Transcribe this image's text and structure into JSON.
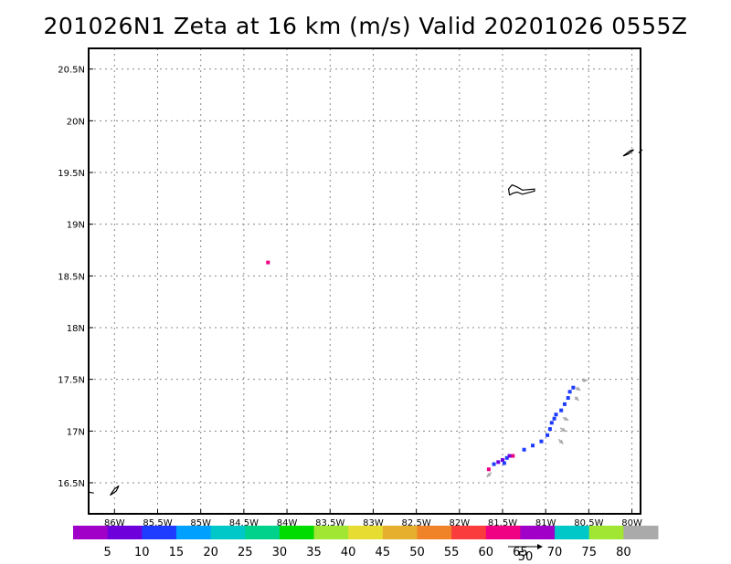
{
  "title": "201026N1 Zeta at 16 km (m/s) Valid 20201026 0555Z",
  "axes": {
    "lon_min": -86.3,
    "lon_max": -79.9,
    "lat_min": 16.2,
    "lat_max": 20.7,
    "x_ticks": [
      {
        "value": -86,
        "label": "86W"
      },
      {
        "value": -85.5,
        "label": "85.5W"
      },
      {
        "value": -85,
        "label": "85W"
      },
      {
        "value": -84.5,
        "label": "84.5W"
      },
      {
        "value": -84,
        "label": "84W"
      },
      {
        "value": -83.5,
        "label": "83.5W"
      },
      {
        "value": -83,
        "label": "83W"
      },
      {
        "value": -82.5,
        "label": "82.5W"
      },
      {
        "value": -82,
        "label": "82W"
      },
      {
        "value": -81.5,
        "label": "81.5W"
      },
      {
        "value": -81,
        "label": "81W"
      },
      {
        "value": -80.5,
        "label": "80.5W"
      },
      {
        "value": -80,
        "label": "80W"
      }
    ],
    "y_ticks": [
      {
        "value": 16.5,
        "label": "16.5N"
      },
      {
        "value": 17,
        "label": "17N"
      },
      {
        "value": 17.5,
        "label": "17.5N"
      },
      {
        "value": 18,
        "label": "18N"
      },
      {
        "value": 18.5,
        "label": "18.5N"
      },
      {
        "value": 19,
        "label": "19N"
      },
      {
        "value": 19.5,
        "label": "19.5N"
      },
      {
        "value": 20,
        "label": "20N"
      },
      {
        "value": 20.5,
        "label": "20.5N"
      }
    ],
    "grid": "dotted"
  },
  "colorbar": {
    "colors": [
      "#a000c8",
      "#6e00dc",
      "#1e3cff",
      "#00a0ff",
      "#00c8c8",
      "#00d28c",
      "#00dc00",
      "#a0e632",
      "#e6dc32",
      "#e6af2d",
      "#f08228",
      "#fa3c3c",
      "#f00082",
      "#a000c8",
      "#00c8c8",
      "#a0e632",
      "#aaaaaa"
    ],
    "labels": [
      "5",
      "10",
      "15",
      "20",
      "25",
      "30",
      "35",
      "40",
      "45",
      "50",
      "55",
      "60",
      "65",
      "70",
      "75",
      "80"
    ]
  },
  "vector_key": {
    "label": "50"
  },
  "reflectivity": [
    {
      "lon": -84.22,
      "lat": 18.63,
      "value": 62
    },
    {
      "lon": -81.66,
      "lat": 16.63,
      "value": 62
    },
    {
      "lon": -81.6,
      "lat": 16.68,
      "value": 13
    },
    {
      "lon": -81.55,
      "lat": 16.7,
      "value": 8
    },
    {
      "lon": -81.5,
      "lat": 16.72,
      "value": 8
    },
    {
      "lon": -81.45,
      "lat": 16.74,
      "value": 13
    },
    {
      "lon": -81.42,
      "lat": 16.76,
      "value": 8
    },
    {
      "lon": -81.48,
      "lat": 16.69,
      "value": 13
    },
    {
      "lon": -81.38,
      "lat": 16.76,
      "value": 62
    },
    {
      "lon": -81.25,
      "lat": 16.82,
      "value": 13
    },
    {
      "lon": -81.15,
      "lat": 16.86,
      "value": 13
    },
    {
      "lon": -81.05,
      "lat": 16.9,
      "value": 13
    },
    {
      "lon": -80.98,
      "lat": 16.96,
      "value": 13
    },
    {
      "lon": -80.95,
      "lat": 17.02,
      "value": 13
    },
    {
      "lon": -80.93,
      "lat": 17.08,
      "value": 13
    },
    {
      "lon": -80.9,
      "lat": 17.12,
      "value": 13
    },
    {
      "lon": -80.88,
      "lat": 17.16,
      "value": 13
    },
    {
      "lon": -80.82,
      "lat": 17.2,
      "value": 13
    },
    {
      "lon": -80.78,
      "lat": 17.26,
      "value": 13
    },
    {
      "lon": -80.74,
      "lat": 17.32,
      "value": 13
    },
    {
      "lon": -80.72,
      "lat": 17.38,
      "value": 13
    },
    {
      "lon": -80.68,
      "lat": 17.42,
      "value": 13
    }
  ],
  "wind_vectors": [
    {
      "lon": -81.63,
      "lat": 16.6,
      "u": -5,
      "v": -5
    },
    {
      "lon": -80.85,
      "lat": 16.92,
      "u": 5,
      "v": -5
    },
    {
      "lon": -80.83,
      "lat": 17.03,
      "u": 6,
      "v": -4
    },
    {
      "lon": -80.8,
      "lat": 17.13,
      "u": 6,
      "v": -3
    },
    {
      "lon": -80.66,
      "lat": 17.33,
      "u": 4,
      "v": -4
    },
    {
      "lon": -80.65,
      "lat": 17.42,
      "u": 5,
      "v": -3
    },
    {
      "lon": -80.58,
      "lat": 17.49,
      "u": 6,
      "v": 0
    }
  ],
  "coastlines": [
    {
      "name": "grand-cayman",
      "points": [
        [
          -81.42,
          19.28
        ],
        [
          -81.43,
          19.34
        ],
        [
          -81.39,
          19.38
        ],
        [
          -81.33,
          19.36
        ],
        [
          -81.27,
          19.33
        ],
        [
          -81.13,
          19.34
        ],
        [
          -81.13,
          19.32
        ],
        [
          -81.27,
          19.29
        ],
        [
          -81.33,
          19.31
        ],
        [
          -81.38,
          19.3
        ],
        [
          -81.42,
          19.28
        ]
      ]
    },
    {
      "name": "little-cayman",
      "points": [
        [
          -80.1,
          19.66
        ],
        [
          -80.02,
          19.71
        ],
        [
          -79.98,
          19.72
        ],
        [
          -80.04,
          19.68
        ],
        [
          -80.1,
          19.66
        ]
      ]
    },
    {
      "name": "cayman-brac",
      "points": [
        [
          -79.92,
          19.69
        ],
        [
          -79.88,
          19.72
        ]
      ]
    },
    {
      "name": "swan-islands",
      "points": [
        [
          -86.05,
          16.38
        ],
        [
          -86.0,
          16.44
        ],
        [
          -85.95,
          16.47
        ],
        [
          -85.98,
          16.42
        ],
        [
          -86.05,
          16.38
        ]
      ]
    },
    {
      "name": "honduras-coast",
      "points": [
        [
          -86.3,
          16.41
        ],
        [
          -86.24,
          16.4
        ]
      ]
    }
  ]
}
